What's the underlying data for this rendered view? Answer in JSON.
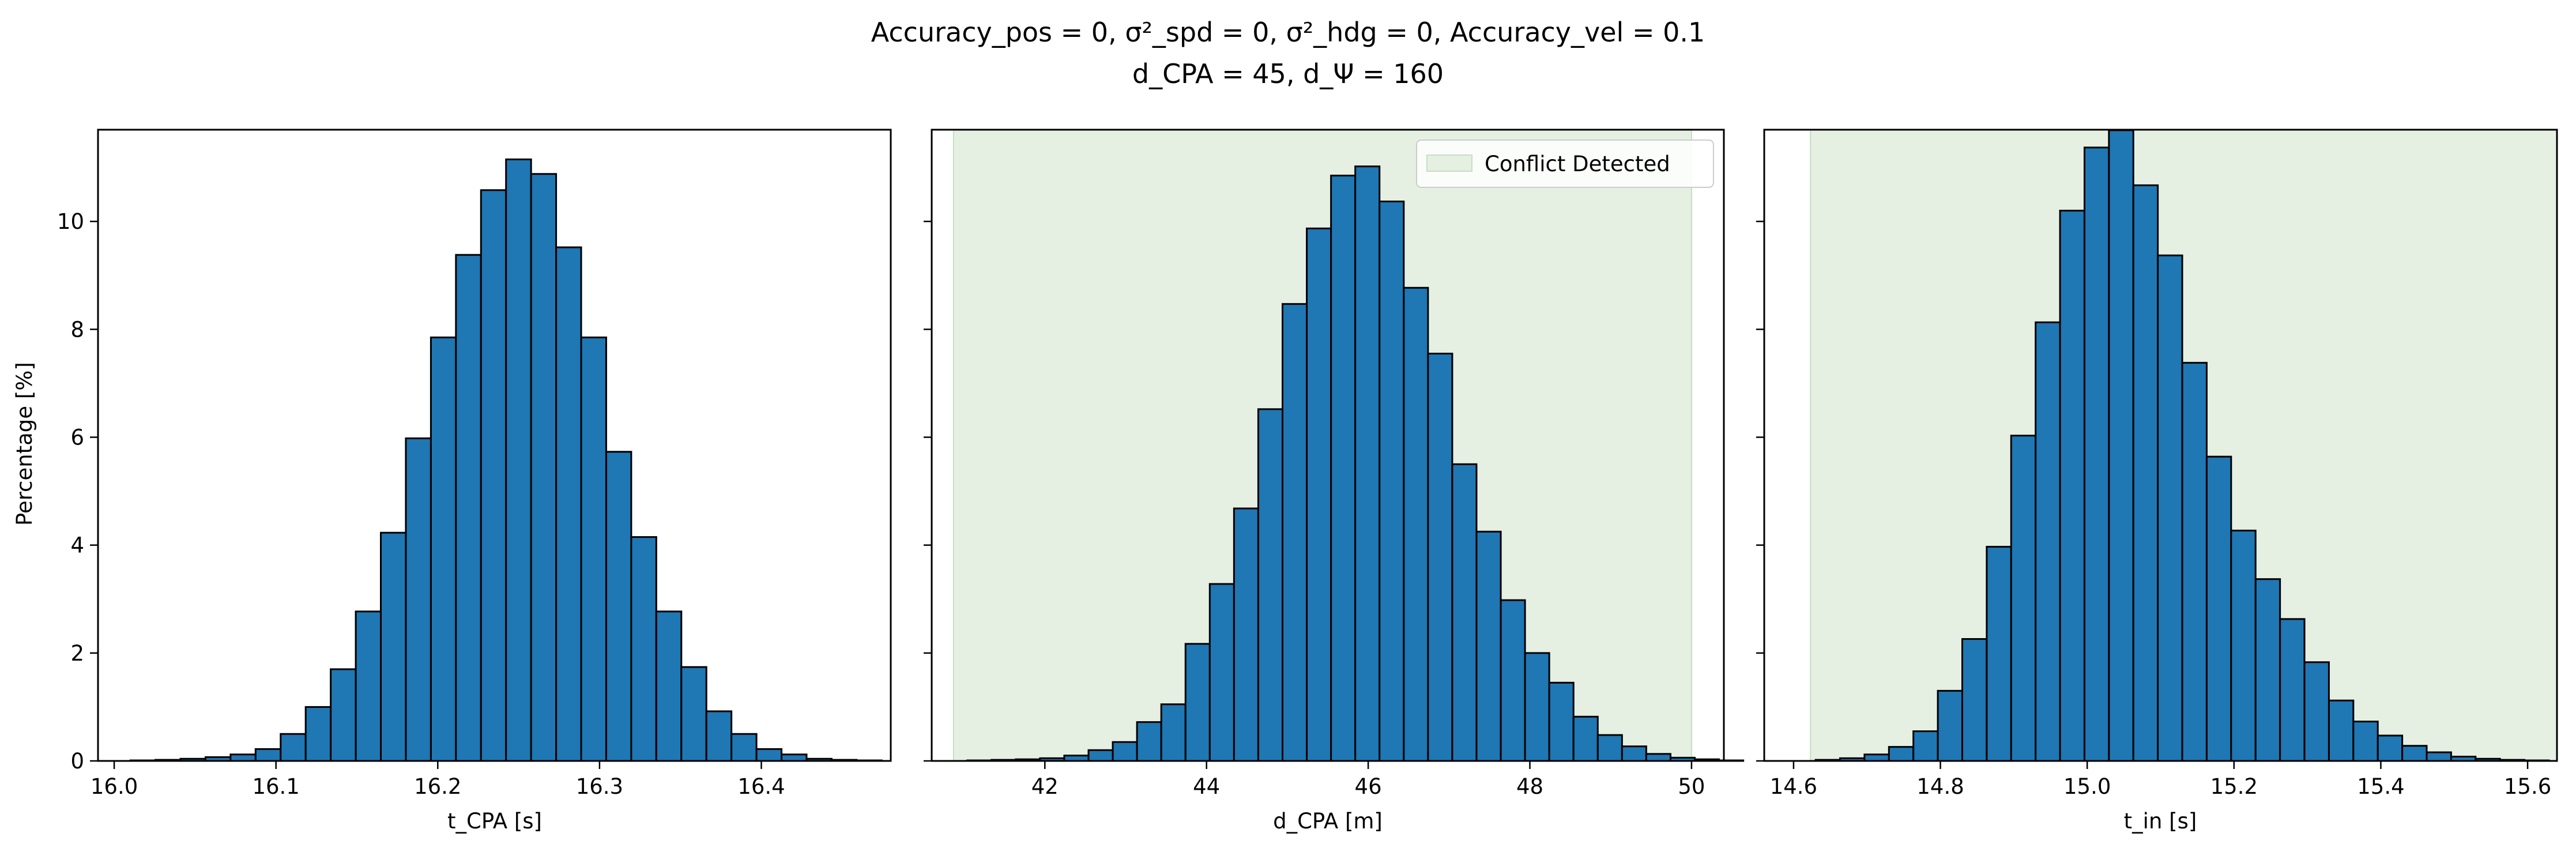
{
  "figure": {
    "title_line1": "Accuracy_pos = 0, σ²_spd = 0, σ²_hdg = 0, Accuracy_vel = 0.1",
    "title_line2": "d_CPA = 45, d_Ψ = 160"
  },
  "colors": {
    "bar": "#1f77b4",
    "bar_edge": "#000000",
    "conflict_region": "#e5f0e3",
    "conflict_edge": "#c4dfc1"
  },
  "chart_data": [
    {
      "type": "bar",
      "xlabel": "t_CPA [s]",
      "ylabel": "Percentage [%]",
      "xlim": [
        15.99,
        16.48
      ],
      "ylim": [
        0,
        11.7
      ],
      "xticks": [
        16.0,
        16.1,
        16.2,
        16.3,
        16.4
      ],
      "xtick_labels": [
        "16.0",
        "16.1",
        "16.2",
        "16.3",
        "16.4"
      ],
      "yticks": [
        0,
        2,
        4,
        6,
        8,
        10
      ],
      "ytick_labels": [
        "0",
        "2",
        "4",
        "6",
        "8",
        "10"
      ],
      "bin_start": 16.01,
      "bin_width": 0.01548,
      "values": [
        0.01,
        0.02,
        0.04,
        0.07,
        0.12,
        0.22,
        0.5,
        1.0,
        1.7,
        2.77,
        4.23,
        5.98,
        7.85,
        9.38,
        10.58,
        11.15,
        10.88,
        9.52,
        7.85,
        5.73,
        4.15,
        2.77,
        1.74,
        0.92,
        0.5,
        0.22,
        0.12,
        0.04,
        0.02,
        0.01
      ],
      "shaded_range": null,
      "legend": null
    },
    {
      "type": "bar",
      "xlabel": "d_CPA [m]",
      "ylabel": "",
      "xlim": [
        40.6,
        50.4
      ],
      "ylim": [
        0,
        11.7
      ],
      "xticks": [
        42,
        44,
        46,
        48,
        50
      ],
      "xtick_labels": [
        "42",
        "44",
        "46",
        "48",
        "50"
      ],
      "yticks": [
        0,
        2,
        4,
        6,
        8,
        10
      ],
      "ytick_labels": [
        "",
        "",
        "",
        "",
        "",
        ""
      ],
      "bin_start": 41.04,
      "bin_width": 0.3,
      "values": [
        0.01,
        0.02,
        0.03,
        0.05,
        0.1,
        0.2,
        0.35,
        0.72,
        1.05,
        2.17,
        3.28,
        4.68,
        6.52,
        8.47,
        9.87,
        10.85,
        11.02,
        10.37,
        8.77,
        7.55,
        5.5,
        4.25,
        2.98,
        2.0,
        1.45,
        0.82,
        0.48,
        0.27,
        0.13,
        0.06,
        0.03,
        0.01
      ],
      "shaded_range": [
        40.87,
        50.0
      ],
      "legend": {
        "label": "Conflict Detected",
        "position": "upper right"
      }
    },
    {
      "type": "bar",
      "xlabel": "t_in [s]",
      "ylabel": "",
      "xlim": [
        14.56,
        15.64
      ],
      "ylim": [
        0,
        11.7
      ],
      "xticks": [
        14.6,
        14.8,
        15.0,
        15.2,
        15.4,
        15.6
      ],
      "xtick_labels": [
        "14.6",
        "14.8",
        "15.0",
        "15.2",
        "15.4",
        "15.6"
      ],
      "yticks": [
        0,
        2,
        4,
        6,
        8,
        10
      ],
      "ytick_labels": [
        "",
        "",
        "",
        "",
        "",
        ""
      ],
      "bin_start": 14.63,
      "bin_width": 0.0333,
      "values": [
        0.02,
        0.05,
        0.12,
        0.26,
        0.55,
        1.3,
        2.26,
        3.97,
        6.03,
        8.13,
        10.2,
        11.37,
        11.69,
        10.67,
        9.37,
        7.38,
        5.64,
        4.27,
        3.37,
        2.63,
        1.83,
        1.12,
        0.73,
        0.47,
        0.28,
        0.16,
        0.08,
        0.04,
        0.02,
        0.01
      ],
      "shaded_range": [
        14.623,
        15.64
      ],
      "legend": null
    }
  ]
}
